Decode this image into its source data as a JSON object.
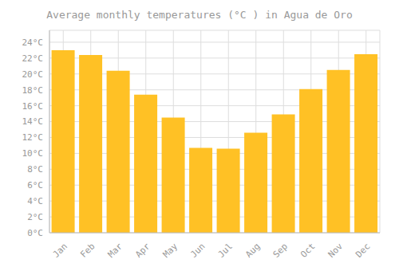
{
  "chart_data": {
    "type": "bar",
    "title": "Average monthly temperatures (°C ) in Agua de Oro",
    "categories": [
      "Jan",
      "Feb",
      "Mar",
      "Apr",
      "May",
      "Jun",
      "Jul",
      "Aug",
      "Sep",
      "Oct",
      "Nov",
      "Dec"
    ],
    "values": [
      23.0,
      22.4,
      20.4,
      17.4,
      14.5,
      10.7,
      10.6,
      12.6,
      14.9,
      18.1,
      20.5,
      22.5
    ],
    "color": "#FFC125",
    "ylim": [
      0,
      25.5
    ],
    "yticks": [
      {
        "value": 0,
        "label": "0°C"
      },
      {
        "value": 2,
        "label": "2°C"
      },
      {
        "value": 4,
        "label": "4°C"
      },
      {
        "value": 6,
        "label": "6°C"
      },
      {
        "value": 8,
        "label": "8°C"
      },
      {
        "value": 10,
        "label": "10°C"
      },
      {
        "value": 12,
        "label": "12°C"
      },
      {
        "value": 14,
        "label": "14°C"
      },
      {
        "value": 16,
        "label": "16°C"
      },
      {
        "value": 18,
        "label": "18°C"
      },
      {
        "value": 20,
        "label": "20°C"
      },
      {
        "value": 22,
        "label": "22°C"
      },
      {
        "value": 24,
        "label": "24°C"
      }
    ],
    "grid": true
  }
}
